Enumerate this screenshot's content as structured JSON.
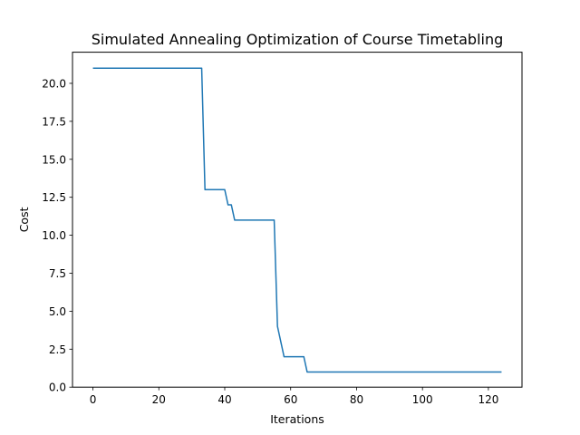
{
  "chart_data": {
    "type": "line",
    "title": "Simulated Annealing Optimization of Course Timetabling",
    "xlabel": "Iterations",
    "ylabel": "Cost",
    "xlim": [
      -6.2,
      130.2
    ],
    "ylim": [
      0,
      22.05
    ],
    "xticks": [
      0,
      20,
      40,
      60,
      80,
      100,
      120
    ],
    "xtick_labels": [
      "0",
      "20",
      "40",
      "60",
      "80",
      "100",
      "120"
    ],
    "yticks": [
      0,
      2.5,
      5,
      7.5,
      10,
      12.5,
      15,
      17.5,
      20
    ],
    "ytick_labels": [
      "0.0",
      "2.5",
      "5.0",
      "7.5",
      "10.0",
      "12.5",
      "15.0",
      "17.5",
      "20.0"
    ],
    "grid": false,
    "legend": "none",
    "series": [
      {
        "color": "#1f77b4",
        "x": [
          0,
          33,
          34,
          40,
          41,
          42,
          43,
          55,
          56,
          57,
          58,
          64,
          65,
          124
        ],
        "y": [
          21,
          21,
          13,
          13,
          12,
          12,
          11,
          11,
          4,
          3,
          2,
          2,
          1,
          1
        ]
      }
    ]
  }
}
